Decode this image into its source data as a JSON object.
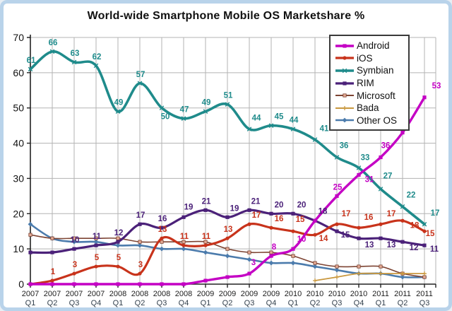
{
  "page": {
    "frame_border_color": "#b9d3ea",
    "background": "#ffffff"
  },
  "chart_data": {
    "type": "line",
    "title": "World-wide Smartphone Mobile OS Marketshare %",
    "xlabel": "",
    "ylabel": "",
    "ylim": [
      0,
      70
    ],
    "yticks": [
      0,
      10,
      20,
      30,
      40,
      50,
      60,
      70
    ],
    "grid": true,
    "legend_position": "top-right",
    "x_categories": [
      "2007 Q1",
      "2007 Q2",
      "2007 Q3",
      "2007 Q4",
      "2008 Q1",
      "2008 Q2",
      "2008 Q3",
      "2008 Q4",
      "2009 Q1",
      "2009 Q2",
      "2009 Q3",
      "2009 Q4",
      "2010 Q1",
      "2010 Q2",
      "2010 Q3",
      "2010 Q4",
      "2011 Q1",
      "2011 Q2",
      "2011 Q3"
    ],
    "series": [
      {
        "name": "Android",
        "color": "#c400c4",
        "marker": "square",
        "line_width": 3.4,
        "values": [
          0,
          0,
          0,
          0,
          0,
          0,
          0,
          0,
          1,
          2,
          3,
          8,
          10,
          18,
          25,
          31,
          36,
          43,
          53
        ],
        "labels": [
          null,
          null,
          null,
          null,
          null,
          null,
          null,
          null,
          null,
          null,
          "3",
          "8",
          "10",
          null,
          "25",
          "31",
          "36",
          "43",
          "53"
        ]
      },
      {
        "name": "iOS",
        "color": "#c8331b",
        "marker": "circle",
        "line_width": 3.2,
        "values": [
          0,
          1,
          3,
          5,
          5,
          3,
          13,
          11,
          11,
          13,
          17,
          16,
          15,
          14,
          17,
          16,
          17,
          18,
          15
        ],
        "labels": [
          null,
          "1",
          "3",
          "5",
          "5",
          "3",
          "13",
          "11",
          "11",
          "13",
          "17",
          "16",
          "15",
          "14",
          "17",
          "16",
          "17",
          "18",
          "15"
        ]
      },
      {
        "name": "Symbian",
        "color": "#1f8b8b",
        "marker": "x",
        "line_width": 3.6,
        "values": [
          61,
          66,
          63,
          62,
          49,
          57,
          50,
          47,
          49,
          51,
          44,
          45,
          44,
          41,
          36,
          33,
          27,
          22,
          17
        ],
        "labels": [
          "61",
          "66",
          "63",
          "62",
          "49",
          "57",
          "50",
          "47",
          "49",
          "51",
          "44",
          "45",
          "44",
          "41",
          "36",
          "33",
          "27",
          "22",
          "17"
        ]
      },
      {
        "name": "RIM",
        "color": "#4b2179",
        "marker": "square",
        "line_width": 3.2,
        "values": [
          9,
          9,
          10,
          11,
          12,
          17,
          16,
          19,
          21,
          19,
          21,
          20,
          20,
          18,
          15,
          13,
          13,
          12,
          11
        ],
        "labels": [
          null,
          null,
          "10",
          "11",
          "12",
          "17",
          "16",
          "19",
          "21",
          "19",
          "21",
          "20",
          "20",
          "18",
          "15",
          "13",
          "13",
          "12",
          "11"
        ]
      },
      {
        "name": "Microsoft",
        "color": "#7d4433",
        "marker": "square-open",
        "line_width": 1.6,
        "values": [
          14,
          13,
          13,
          13,
          13,
          12,
          12,
          12,
          12,
          10,
          9,
          9,
          8,
          6,
          5,
          5,
          5,
          3,
          2
        ],
        "labels": [
          null,
          null,
          null,
          null,
          null,
          null,
          null,
          null,
          null,
          null,
          null,
          null,
          null,
          null,
          null,
          null,
          null,
          null,
          null
        ]
      },
      {
        "name": "Bada",
        "color": "#c9983f",
        "marker": "plus",
        "line_width": 1.8,
        "values": [
          null,
          null,
          null,
          null,
          null,
          null,
          null,
          null,
          null,
          null,
          null,
          null,
          null,
          1,
          2,
          3,
          3,
          3,
          3
        ],
        "labels": [
          null,
          null,
          null,
          null,
          null,
          null,
          null,
          null,
          null,
          null,
          null,
          null,
          null,
          null,
          null,
          null,
          null,
          null,
          null
        ]
      },
      {
        "name": "Other OS",
        "color": "#4b7bac",
        "marker": "diamond",
        "line_width": 2.6,
        "values": [
          17,
          13,
          12,
          12,
          11,
          11,
          10,
          10,
          9,
          8,
          7,
          6,
          6,
          5,
          4,
          3,
          3,
          2,
          2
        ],
        "labels": [
          null,
          null,
          null,
          null,
          null,
          null,
          null,
          null,
          null,
          null,
          null,
          null,
          null,
          null,
          null,
          null,
          null,
          null,
          null
        ]
      }
    ]
  }
}
